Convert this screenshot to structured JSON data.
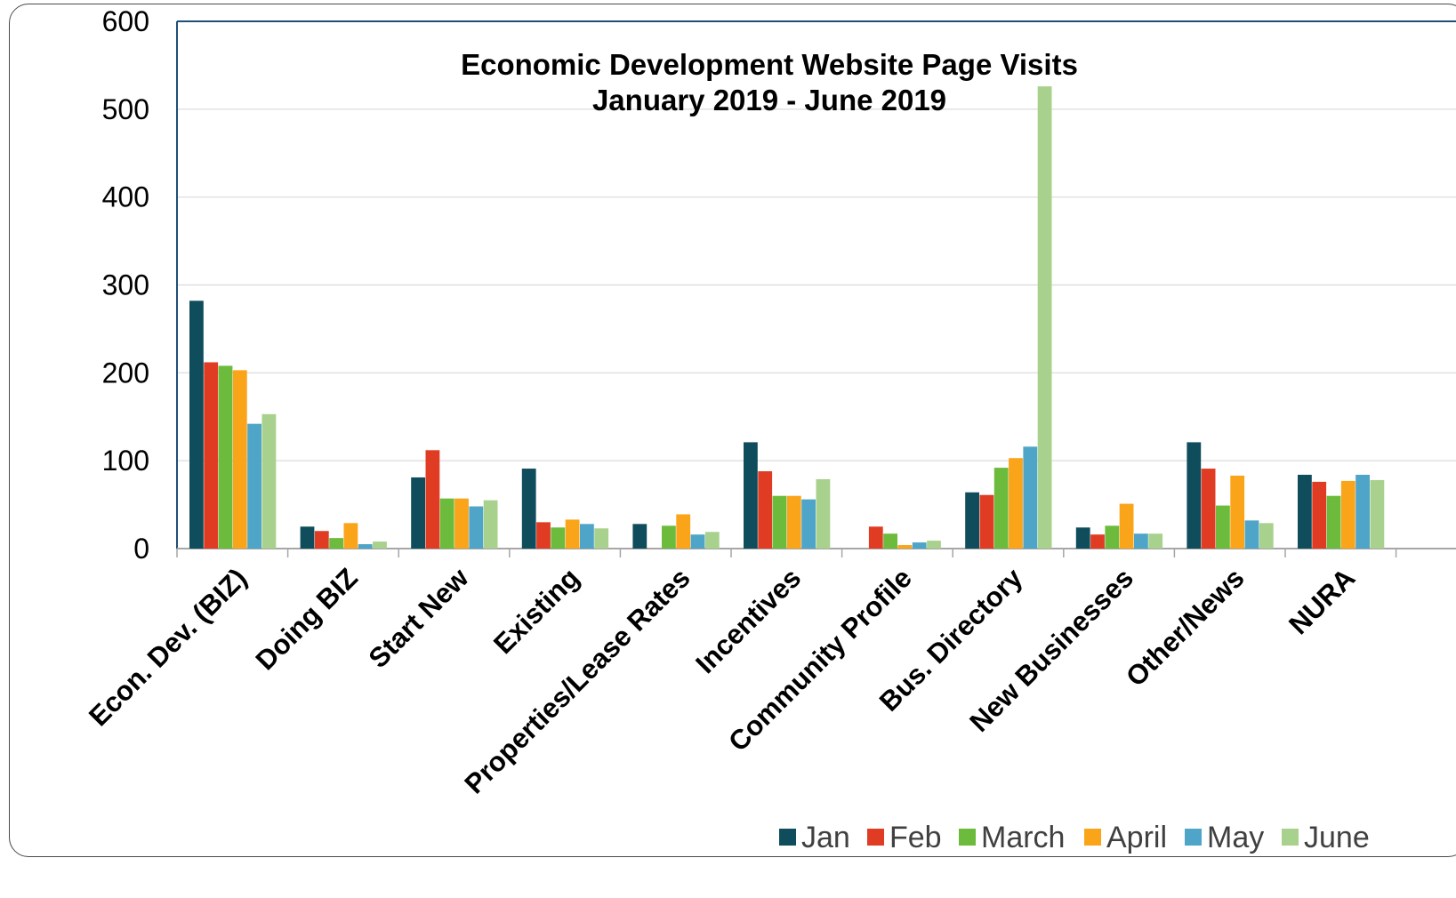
{
  "chart_data": {
    "type": "bar",
    "title": "Economic Development Website Page Visits",
    "subtitle": "January 2019 - June 2019",
    "xlabel": "",
    "ylabel": "",
    "ylim": [
      0,
      600
    ],
    "yticks": [
      0,
      100,
      200,
      300,
      400,
      500,
      600
    ],
    "grid": true,
    "legend_position": "bottom-right",
    "categories": [
      "Econ. Dev. (BIZ)",
      "Doing BIZ",
      "Start New",
      "Existing",
      "Properties/Lease Rates",
      "Incentives",
      "Community Profile",
      "Bus. Directory",
      "New Businesses",
      "Other/News",
      "NURA"
    ],
    "series": [
      {
        "name": "Jan",
        "color": "#0f4c5c",
        "values": [
          282,
          25,
          81,
          91,
          28,
          121,
          0,
          64,
          24,
          121,
          84
        ]
      },
      {
        "name": "Feb",
        "color": "#e03c24",
        "values": [
          212,
          20,
          112,
          30,
          0,
          88,
          25,
          61,
          16,
          91,
          76
        ]
      },
      {
        "name": "March",
        "color": "#6cbb3c",
        "values": [
          208,
          12,
          57,
          24,
          26,
          60,
          17,
          92,
          26,
          49,
          60
        ]
      },
      {
        "name": "April",
        "color": "#faa41a",
        "values": [
          203,
          29,
          57,
          33,
          39,
          60,
          4,
          103,
          51,
          83,
          77
        ]
      },
      {
        "name": "May",
        "color": "#4ea5c8",
        "values": [
          142,
          5,
          48,
          28,
          16,
          56,
          7,
          116,
          17,
          32,
          84
        ]
      },
      {
        "name": "June",
        "color": "#a9d18e",
        "values": [
          153,
          8,
          55,
          23,
          19,
          79,
          9,
          526,
          17,
          29,
          78
        ]
      }
    ]
  }
}
